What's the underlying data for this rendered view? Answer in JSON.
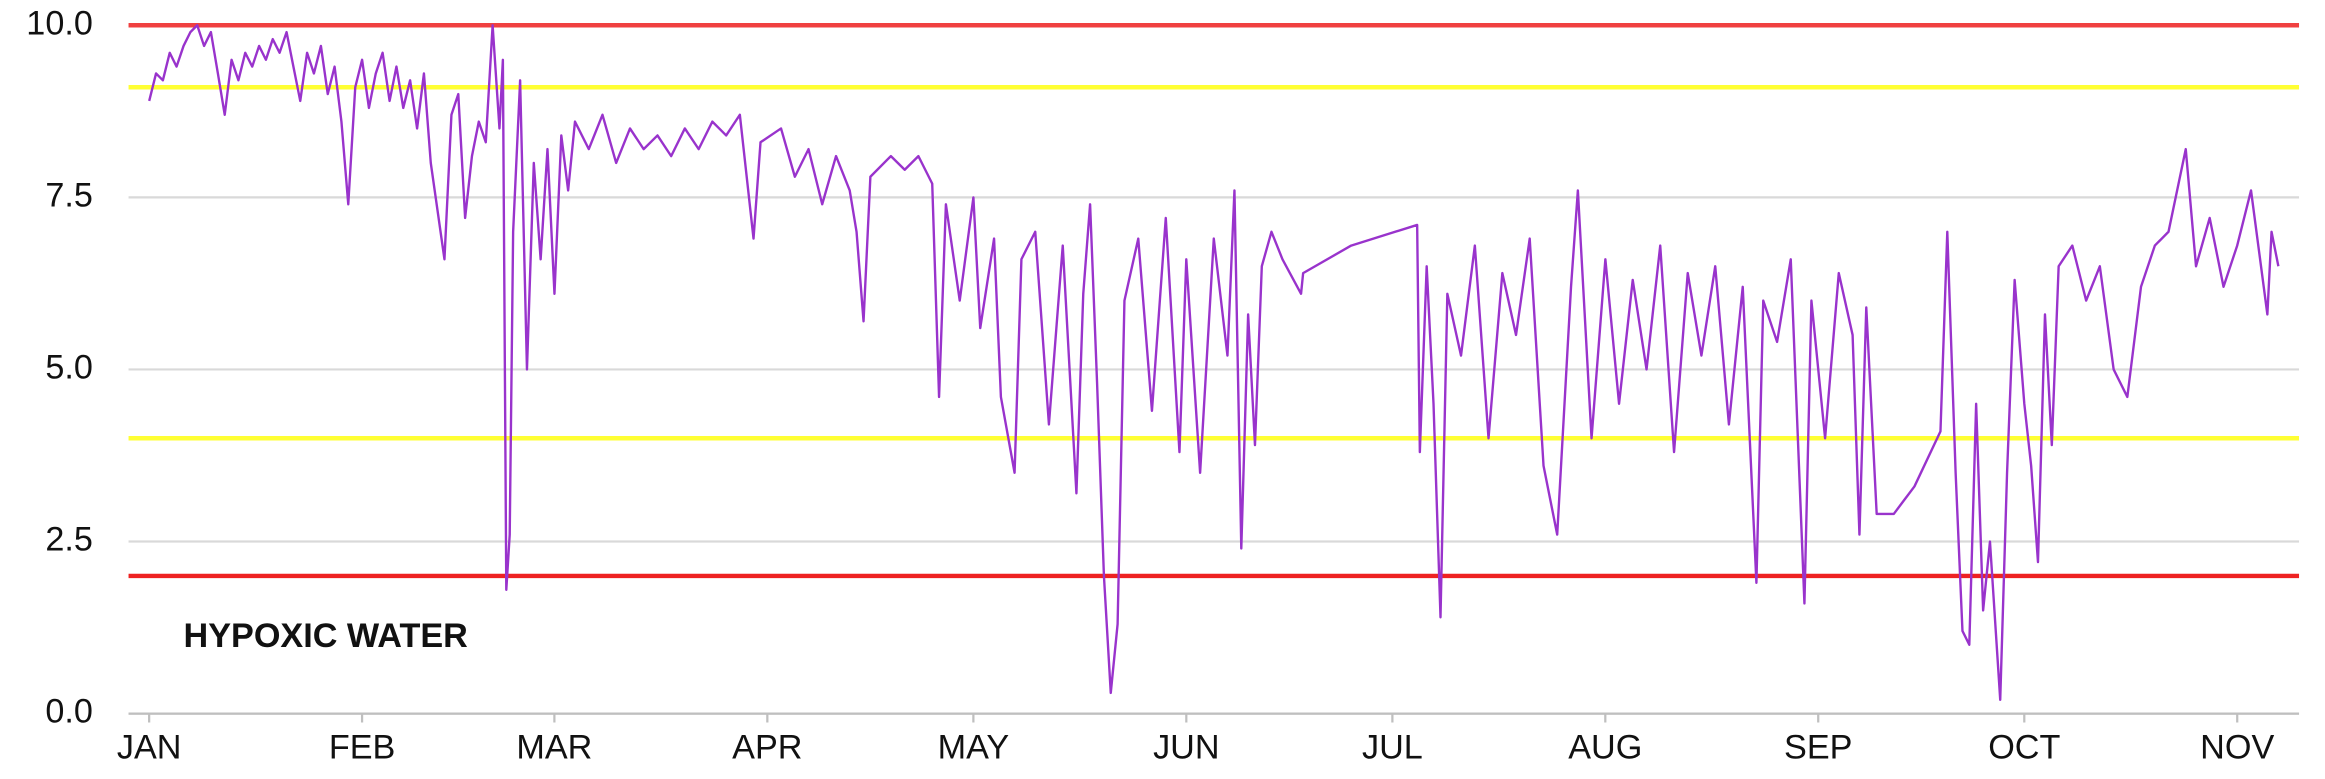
{
  "chart_data": {
    "type": "line",
    "annotations": [
      {
        "text": "HYPOXIC WATER",
        "color": "#ee1111"
      }
    ],
    "x": [
      0,
      1,
      2,
      3,
      4,
      5,
      6,
      7,
      8,
      9,
      10,
      11,
      12,
      13,
      14,
      15,
      16,
      17,
      18,
      19,
      20,
      21,
      22,
      23,
      24,
      25,
      26,
      27,
      28,
      29,
      30,
      31,
      32,
      33,
      34,
      35,
      36,
      37,
      38,
      39,
      40,
      41,
      42,
      43,
      44,
      45,
      46,
      47,
      48,
      49,
      50,
      51,
      51.5,
      52,
      52.5,
      53,
      54,
      55,
      56,
      57,
      58,
      59,
      60,
      61,
      62,
      64,
      66,
      68,
      70,
      72,
      74,
      76,
      78,
      80,
      82,
      84,
      86,
      88,
      89,
      92,
      94,
      96,
      98,
      100,
      102,
      103,
      104,
      105,
      108,
      110,
      112,
      114,
      115,
      116,
      118,
      120,
      121,
      123,
      124,
      126,
      127,
      129,
      131,
      133,
      135,
      136,
      137,
      138,
      139,
      140,
      141,
      142,
      144,
      146,
      148,
      150,
      151,
      153,
      155,
      157,
      158,
      159,
      160,
      161,
      162,
      163.4,
      165,
      167.7,
      168,
      175,
      184.6,
      185,
      186,
      187,
      188,
      189,
      191,
      193,
      195,
      197,
      199,
      201,
      203,
      205,
      207,
      208,
      210,
      212,
      214,
      216,
      218,
      220,
      222,
      224,
      226,
      228,
      230,
      232,
      234,
      235,
      237,
      239,
      241,
      242,
      244,
      246,
      248,
      249,
      250,
      251.5,
      254,
      257,
      260.8,
      261.8,
      263,
      264,
      265,
      266,
      267,
      268,
      269.5,
      270.5,
      271.6,
      273,
      274,
      275,
      276,
      277,
      278,
      280,
      282,
      284,
      286,
      288,
      290,
      292,
      294,
      296.5,
      298,
      300,
      302,
      304,
      306,
      308.4,
      309,
      310
    ],
    "series": [
      {
        "color": "#9933cc",
        "values": [
          8.9,
          9.3,
          9.2,
          9.6,
          9.4,
          9.7,
          9.9,
          10.0,
          9.7,
          9.9,
          9.3,
          8.7,
          9.5,
          9.2,
          9.6,
          9.4,
          9.7,
          9.5,
          9.8,
          9.6,
          9.9,
          9.4,
          8.9,
          9.6,
          9.3,
          9.7,
          9.0,
          9.4,
          8.6,
          7.4,
          9.1,
          9.5,
          8.8,
          9.3,
          9.6,
          8.9,
          9.4,
          8.8,
          9.2,
          8.5,
          9.3,
          8.0,
          7.3,
          6.6,
          8.7,
          9.0,
          7.2,
          8.1,
          8.6,
          8.3,
          10.0,
          8.5,
          9.5,
          1.8,
          2.6,
          7.0,
          9.2,
          5.0,
          8.0,
          6.6,
          8.2,
          6.1,
          8.4,
          7.6,
          8.6,
          8.2,
          8.7,
          8.0,
          8.5,
          8.2,
          8.4,
          8.1,
          8.5,
          8.2,
          8.6,
          8.4,
          8.7,
          6.9,
          8.3,
          8.5,
          7.8,
          8.2,
          7.4,
          8.1,
          7.6,
          7.0,
          5.7,
          7.8,
          8.1,
          7.9,
          8.1,
          7.7,
          4.6,
          7.4,
          6.0,
          7.5,
          5.6,
          6.9,
          4.6,
          3.5,
          6.6,
          7.0,
          4.2,
          6.8,
          3.2,
          6.1,
          7.4,
          4.8,
          2.0,
          0.3,
          1.3,
          6.0,
          6.9,
          4.4,
          7.2,
          3.8,
          6.6,
          3.5,
          6.9,
          5.2,
          7.6,
          2.4,
          5.8,
          3.9,
          6.5,
          7.0,
          6.6,
          6.1,
          6.4,
          6.8,
          7.1,
          3.8,
          6.5,
          4.5,
          1.4,
          6.1,
          5.2,
          6.8,
          4.0,
          6.4,
          5.5,
          6.9,
          3.6,
          2.6,
          6.2,
          7.6,
          4.0,
          6.6,
          4.5,
          6.3,
          5.0,
          6.8,
          3.8,
          6.4,
          5.2,
          6.5,
          4.2,
          6.2,
          1.9,
          6.0,
          5.4,
          6.6,
          1.6,
          6.0,
          4.0,
          6.4,
          5.5,
          2.6,
          5.9,
          2.9,
          2.9,
          3.3,
          4.1,
          7.0,
          3.5,
          1.2,
          1.0,
          4.5,
          1.5,
          2.5,
          0.2,
          3.5,
          6.3,
          4.5,
          3.6,
          2.2,
          5.8,
          3.9,
          6.5,
          6.8,
          6.0,
          6.5,
          5.0,
          4.6,
          6.2,
          6.8,
          7.0,
          8.2,
          6.5,
          7.2,
          6.2,
          6.8,
          7.6,
          5.8,
          7.0,
          6.5
        ]
      }
    ],
    "xlim": [
      -3,
      313
    ],
    "xticks": [
      {
        "value": 0,
        "label": "JAN"
      },
      {
        "value": 31,
        "label": "FEB"
      },
      {
        "value": 59,
        "label": "MAR"
      },
      {
        "value": 90,
        "label": "APR"
      },
      {
        "value": 120,
        "label": "MAY"
      },
      {
        "value": 151,
        "label": "JUN"
      },
      {
        "value": 181,
        "label": "JUL"
      },
      {
        "value": 212,
        "label": "AUG"
      },
      {
        "value": 243,
        "label": "SEP"
      },
      {
        "value": 273,
        "label": "OCT"
      },
      {
        "value": 304,
        "label": "NOV"
      }
    ],
    "ylim": [
      0,
      10
    ],
    "yticks": [
      {
        "value": 0,
        "label": "0.0"
      },
      2.5,
      {
        "value": 5,
        "label": "5.0"
      },
      7.5,
      {
        "value": 10,
        "label": "10.0"
      }
    ],
    "grid": true,
    "reference_lines": [
      {
        "value": 10,
        "color": "#f04040"
      },
      {
        "value": 9.1,
        "color": "#ffff33"
      },
      {
        "value": 4,
        "color": "#ffff33"
      },
      {
        "value": 2,
        "color": "#ee2222"
      }
    ]
  }
}
